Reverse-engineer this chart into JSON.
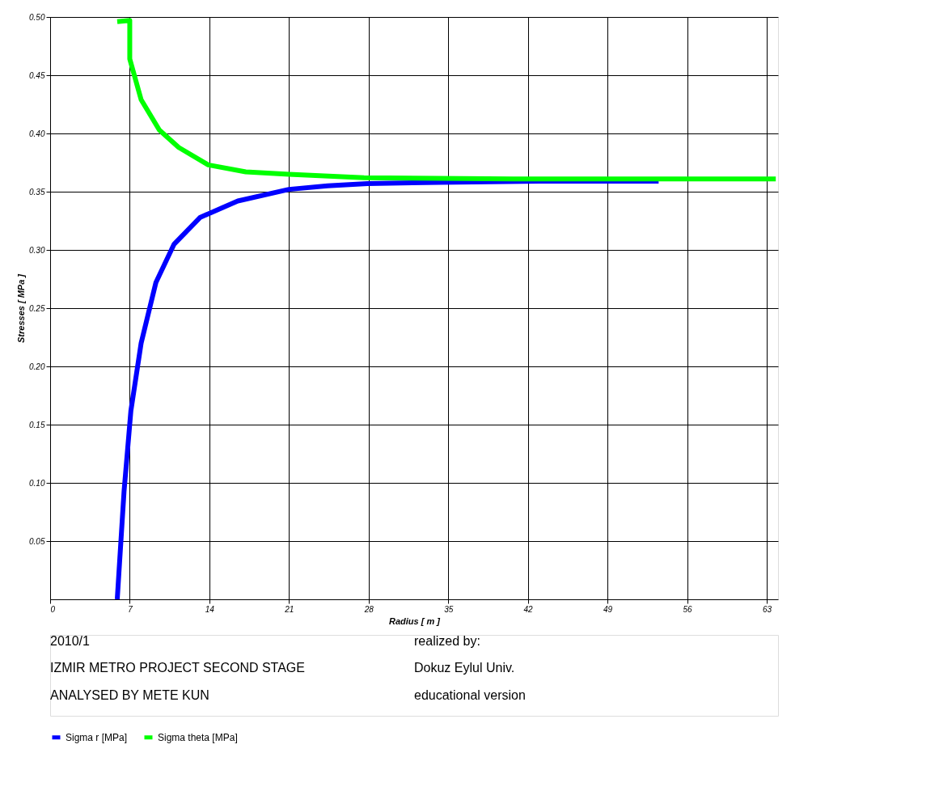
{
  "chart_data": {
    "type": "line",
    "xlabel": "Radius [ m ]",
    "ylabel": "Stresses [ MPa ]",
    "xlim": [
      0,
      64
    ],
    "ylim": [
      0,
      0.5
    ],
    "xticks": [
      0,
      7,
      14,
      21,
      28,
      35,
      42,
      49,
      56,
      63
    ],
    "yticks": [
      {
        "value": 0.05,
        "label": "0.05"
      },
      {
        "value": 0.1,
        "label": "0.10"
      },
      {
        "value": 0.15,
        "label": "0.15"
      },
      {
        "value": 0.2,
        "label": "0.20"
      },
      {
        "value": 0.25,
        "label": "0.25"
      },
      {
        "value": 0.3,
        "label": "0.30"
      },
      {
        "value": 0.35,
        "label": "0.35"
      },
      {
        "value": 0.4,
        "label": "0.40"
      },
      {
        "value": 0.45,
        "label": "0.45"
      },
      {
        "value": 0.5,
        "label": "0.50"
      }
    ],
    "grid": true,
    "legend": "bottom",
    "marker": "none",
    "line_style": "solid",
    "series": [
      {
        "name": "Sigma r [MPa]",
        "color": "#0000ff",
        "x": [
          5.9,
          6.5,
          7.1,
          8.0,
          9.3,
          10.9,
          13.2,
          16.5,
          21,
          24.4,
          27.9,
          34.2,
          43,
          53.5
        ],
        "values": [
          0.0,
          0.093,
          0.162,
          0.22,
          0.272,
          0.305,
          0.328,
          0.342,
          0.352,
          0.355,
          0.357,
          0.358,
          0.359,
          0.359
        ]
      },
      {
        "name": "Sigma theta [MPa]",
        "color": "#00ff00",
        "x": [
          5.9,
          7.0,
          7.0,
          8.0,
          9.6,
          11.3,
          13.9,
          17.2,
          21,
          27.6,
          40.7,
          52,
          63.8
        ],
        "values": [
          0.496,
          0.497,
          0.464,
          0.429,
          0.403,
          0.388,
          0.373,
          0.367,
          0.365,
          0.362,
          0.361,
          0.361,
          0.361
        ]
      }
    ],
    "annotations": [
      "2010/1",
      "IZMIR METRO PROJECT SECOND STAGE",
      "ANALYSED BY METE KUN",
      "realized by:",
      "Dokuz Eylul Univ.",
      "educational version"
    ]
  }
}
